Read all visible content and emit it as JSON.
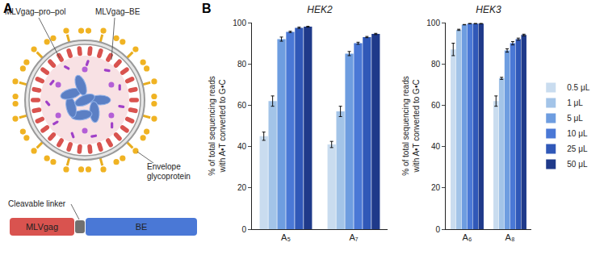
{
  "panel_labels": [
    "A",
    "B"
  ],
  "diagram": {
    "particle_labels": {
      "gag_pro_pol": "MLVgag–pro–pol",
      "gag_be": "MLVgag–BE",
      "envelope": "Envelope\nglycoprotein"
    },
    "fusion": {
      "left": "MLVgag",
      "linker": "Cleavable linker",
      "right": "BE"
    }
  },
  "chart_data": [
    {
      "type": "bar",
      "title": "HEK2",
      "y_label": "% of total sequencing reads\nwith A•T converted to G•C",
      "categories": [
        "A₅",
        "A₇"
      ],
      "series": [
        {
          "name": "0.5 μL",
          "color": "#c9dcef",
          "values": [
            45,
            41
          ],
          "errors": [
            2,
            1.5
          ]
        },
        {
          "name": "1 μL",
          "color": "#a3c4e8",
          "values": [
            62,
            57
          ],
          "errors": [
            2.5,
            2.5
          ]
        },
        {
          "name": "5 μL",
          "color": "#6e9de0",
          "values": [
            92,
            85
          ],
          "errors": [
            1,
            1
          ]
        },
        {
          "name": "10 μL",
          "color": "#4a78d6",
          "values": [
            95.5,
            90
          ],
          "errors": [
            0.3,
            0.5
          ]
        },
        {
          "name": "25 μL",
          "color": "#3058b8",
          "values": [
            97.5,
            93
          ],
          "errors": [
            0.3,
            0.3
          ]
        },
        {
          "name": "50 μL",
          "color": "#1f3a8a",
          "values": [
            98,
            94.5
          ],
          "errors": [
            0.2,
            0.3
          ]
        }
      ],
      "ylim": [
        0,
        100
      ],
      "yticks": [
        0,
        20,
        40,
        60,
        80,
        100
      ],
      "grid": false
    },
    {
      "type": "bar",
      "title": "HEK3",
      "y_label": "% of total sequencing reads\nwith A•T converted to G•C",
      "categories": [
        "A₆",
        "A₈"
      ],
      "series": [
        {
          "name": "0.5 μL",
          "color": "#c9dcef",
          "values": [
            87,
            62
          ],
          "errors": [
            3,
            2.5
          ]
        },
        {
          "name": "1 μL",
          "color": "#a3c4e8",
          "values": [
            96.5,
            73
          ],
          "errors": [
            0.3,
            0.5
          ]
        },
        {
          "name": "5 μL",
          "color": "#6e9de0",
          "values": [
            99,
            86.5
          ],
          "errors": [
            0.1,
            0.8
          ]
        },
        {
          "name": "10 μL",
          "color": "#4a78d6",
          "values": [
            99.5,
            90
          ],
          "errors": [
            0.1,
            0.8
          ]
        },
        {
          "name": "25 μL",
          "color": "#3058b8",
          "values": [
            99.5,
            92
          ],
          "errors": [
            0.1,
            0.5
          ]
        },
        {
          "name": "50 μL",
          "color": "#1f3a8a",
          "values": [
            99.5,
            94
          ],
          "errors": [
            0.1,
            0.4
          ]
        }
      ],
      "ylim": [
        0,
        100
      ],
      "yticks": [
        0,
        20,
        40,
        60,
        80,
        100
      ],
      "grid": false,
      "legend": "right"
    }
  ]
}
